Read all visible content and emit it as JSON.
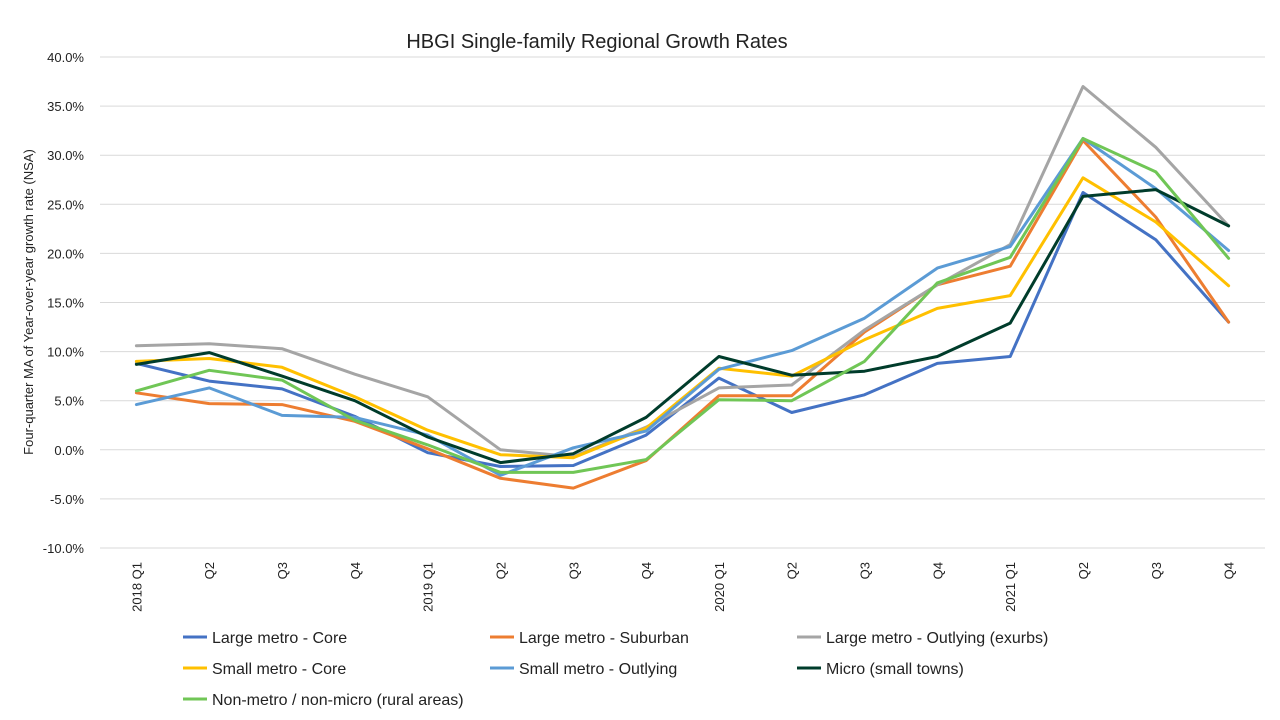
{
  "chart_data": {
    "type": "line",
    "title": "HBGI Single-family Regional Growth Rates",
    "ylabel": "Four-quarter MA of Year-over-year growth rate (NSA)",
    "xlabel": "",
    "categories": [
      "2018 Q1",
      "Q2",
      "Q3",
      "Q4",
      "2019 Q1",
      "Q2",
      "Q3",
      "Q4",
      "2020 Q1",
      "Q2",
      "Q3",
      "Q4",
      "2021 Q1",
      "Q2",
      "Q3",
      "Q4"
    ],
    "ylim": [
      -10,
      40
    ],
    "yticks": [
      -10,
      -5,
      0,
      5,
      10,
      15,
      20,
      25,
      30,
      35,
      40
    ],
    "ytick_labels": [
      "-10.0%",
      "-5.0%",
      "0.0%",
      "5.0%",
      "10.0%",
      "15.0%",
      "20.0%",
      "25.0%",
      "30.0%",
      "35.0%",
      "40.0%"
    ],
    "grid": true,
    "legend_position": "bottom",
    "series": [
      {
        "name": "Large metro - Core",
        "color": "#4472C4",
        "values": [
          8.8,
          7.0,
          6.2,
          3.4,
          -0.3,
          -1.7,
          -1.6,
          1.5,
          7.3,
          3.8,
          5.6,
          8.8,
          9.5,
          26.2,
          21.4,
          13.0
        ]
      },
      {
        "name": "Large metro - Suburban",
        "color": "#ED7D31",
        "values": [
          5.8,
          4.7,
          4.6,
          2.9,
          0.1,
          -2.9,
          -3.9,
          -1.1,
          5.5,
          5.5,
          12.0,
          16.8,
          18.7,
          31.5,
          23.7,
          13.0
        ]
      },
      {
        "name": "Large metro - Outlying (exurbs)",
        "color": "#A5A5A5",
        "values": [
          10.6,
          10.8,
          10.3,
          7.7,
          5.4,
          0.0,
          -0.7,
          2.3,
          6.3,
          6.6,
          12.2,
          16.8,
          20.9,
          37.0,
          30.8,
          22.8
        ]
      },
      {
        "name": "Small metro - Core",
        "color": "#FFC000",
        "values": [
          9.0,
          9.3,
          8.4,
          5.4,
          2.0,
          -0.5,
          -0.8,
          2.2,
          8.3,
          7.5,
          11.2,
          14.4,
          15.7,
          27.7,
          23.2,
          16.7
        ]
      },
      {
        "name": "Small metro - Outlying",
        "color": "#5B9BD5",
        "values": [
          4.6,
          6.3,
          3.5,
          3.3,
          1.5,
          -2.6,
          0.2,
          1.9,
          8.2,
          10.1,
          13.4,
          18.5,
          20.7,
          31.7,
          26.6,
          20.3
        ]
      },
      {
        "name": "Micro (small towns)",
        "color": "#003C2B",
        "values": [
          8.7,
          9.9,
          7.5,
          5.0,
          1.3,
          -1.3,
          -0.4,
          3.3,
          9.5,
          7.6,
          8.0,
          9.5,
          12.9,
          25.8,
          26.5,
          22.8
        ]
      },
      {
        "name": "Non-metro / non-micro (rural areas)",
        "color": "#70C656",
        "values": [
          6.0,
          8.1,
          7.1,
          3.0,
          0.5,
          -2.3,
          -2.3,
          -1.0,
          5.1,
          5.0,
          9.0,
          17.0,
          19.6,
          31.7,
          28.3,
          19.5
        ]
      }
    ]
  }
}
